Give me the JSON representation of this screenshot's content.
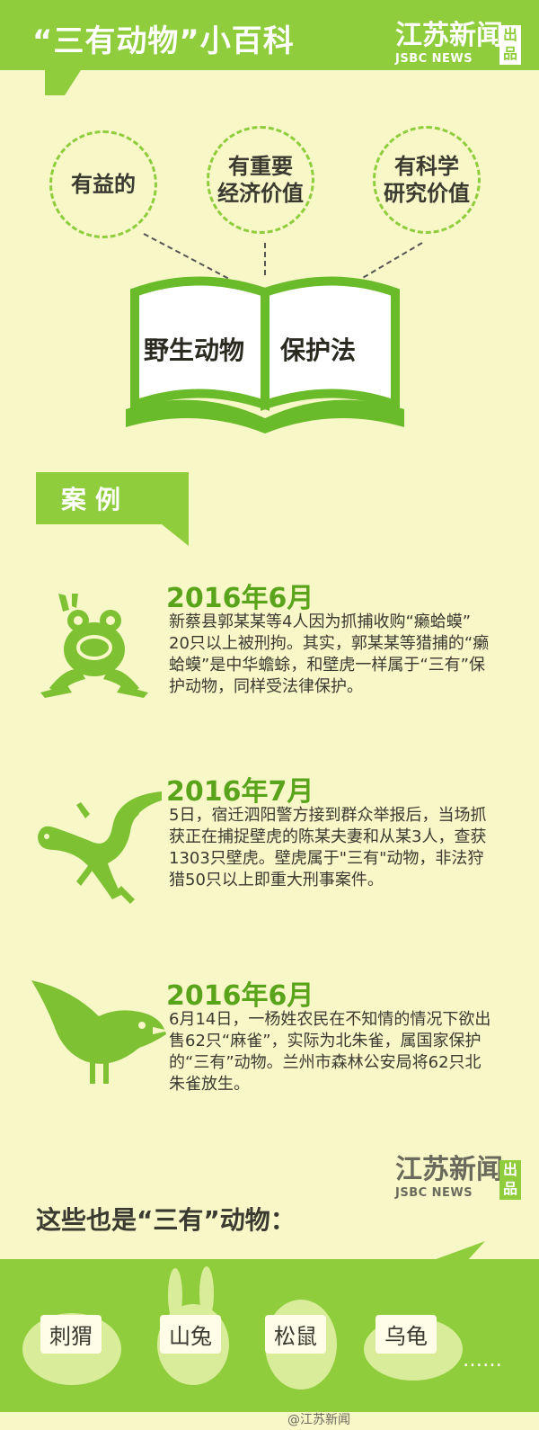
{
  "header": {
    "title": "“三有动物”小百科",
    "brand_cn": "江苏新闻",
    "brand_en": "JSBC NEWS",
    "brand_badge": "出品"
  },
  "circles": [
    {
      "label": "有益的"
    },
    {
      "label": "有重要\n经济价值"
    },
    {
      "label": "有科学\n研究价值"
    }
  ],
  "book": {
    "left_page": "野生动物",
    "right_page": "保护法"
  },
  "section_tag": "案例",
  "cases": [
    {
      "date": "2016年6月",
      "text": "新蔡县郭某某等4人因为抓捕收购“癞蛤蟆” 20只以上被刑拘。其实，郭某某等猎捕的“癞蛤蟆”是中华蟾蜍，和壁虎一样属于“三有”保护动物，同样受法律保护。",
      "icon": "frog-icon"
    },
    {
      "date": "2016年7月",
      "text": "5日，宿迁泗阳警方接到群众举报后，当场抓获正在捕捉壁虎的陈某夫妻和从某3人，查获1303只壁虎。壁虎属于\"三有\"动物，非法狩猎50只以上即重大刑事案件。",
      "icon": "gecko-icon"
    },
    {
      "date": "2016年6月",
      "text": "6月14日，一杨姓农民在不知情的情况下欲出售62只“麻雀”，实际为北朱雀，属国家保护的“三有”动物。兰州市森林公安局将62只北朱雀放生。",
      "icon": "bird-icon"
    }
  ],
  "footer_brand": {
    "cn": "江苏新闻",
    "en": "JSBC NEWS",
    "badge": "出品"
  },
  "also_title": "这些也是“三有”动物：",
  "animals": [
    "刺猬",
    "山兔",
    "松鼠",
    "乌龟"
  ],
  "ellipsis": "……",
  "weibo": "@江苏新闻",
  "colors": {
    "accent": "#8fcd3d",
    "background": "#f8f7c8",
    "date": "#5aa41c"
  }
}
